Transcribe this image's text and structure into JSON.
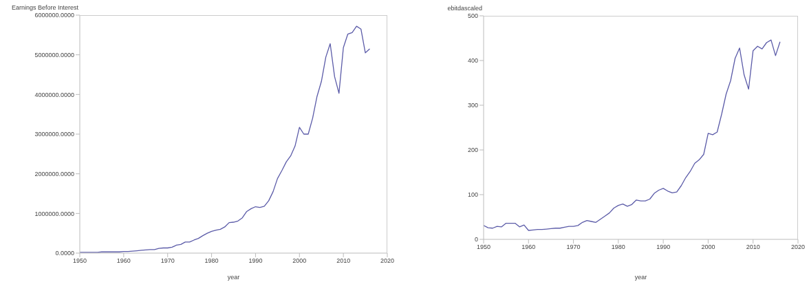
{
  "chart_data": [
    {
      "type": "line",
      "ylabel": "Earnings Before Interest",
      "xlabel": "year",
      "color": "#5b5ba8",
      "x": [
        1950,
        1951,
        1952,
        1953,
        1954,
        1955,
        1956,
        1957,
        1958,
        1959,
        1960,
        1961,
        1962,
        1963,
        1964,
        1965,
        1966,
        1967,
        1968,
        1969,
        1970,
        1971,
        1972,
        1973,
        1974,
        1975,
        1976,
        1977,
        1978,
        1979,
        1980,
        1981,
        1982,
        1983,
        1984,
        1985,
        1986,
        1987,
        1988,
        1989,
        1990,
        1991,
        1992,
        1993,
        1994,
        1995,
        1996,
        1997,
        1998,
        1999,
        2000,
        2001,
        2002,
        2003,
        2004,
        2005,
        2006,
        2007,
        2008,
        2009,
        2010,
        2011,
        2012,
        2013,
        2014,
        2015,
        2016
      ],
      "values": [
        20000,
        20000,
        20000,
        20000,
        20000,
        30000,
        30000,
        30000,
        30000,
        30000,
        40000,
        40000,
        50000,
        60000,
        70000,
        80000,
        90000,
        90000,
        120000,
        130000,
        130000,
        150000,
        200000,
        220000,
        280000,
        280000,
        330000,
        370000,
        440000,
        500000,
        550000,
        580000,
        600000,
        660000,
        770000,
        780000,
        810000,
        890000,
        1050000,
        1120000,
        1170000,
        1150000,
        1180000,
        1320000,
        1550000,
        1880000,
        2080000,
        2300000,
        2450000,
        2700000,
        3170000,
        3000000,
        3000000,
        3400000,
        3950000,
        4330000,
        4940000,
        5280000,
        4450000,
        4030000,
        5180000,
        5520000,
        5560000,
        5720000,
        5650000,
        5050000,
        5150000
      ],
      "xlim": [
        1950,
        2020
      ],
      "xticks": [
        1950,
        1960,
        1970,
        1980,
        1990,
        2000,
        2010,
        2020
      ],
      "ylim": [
        0,
        6000000
      ],
      "yticks": [
        {
          "value": 0,
          "label": "0.0000"
        },
        {
          "value": 1000000,
          "label": "1000000.0000"
        },
        {
          "value": 2000000,
          "label": "2000000.0000"
        },
        {
          "value": 3000000,
          "label": "3000000.0000"
        },
        {
          "value": 4000000,
          "label": "4000000.0000"
        },
        {
          "value": 5000000,
          "label": "5000000.0000"
        },
        {
          "value": 6000000,
          "label": "6000000.0000"
        }
      ]
    },
    {
      "type": "line",
      "ylabel": "ebitdascaled",
      "xlabel": "year",
      "color": "#5b5ba8",
      "x": [
        1950,
        1951,
        1952,
        1953,
        1954,
        1955,
        1956,
        1957,
        1958,
        1959,
        1960,
        1961,
        1962,
        1963,
        1964,
        1965,
        1966,
        1967,
        1968,
        1969,
        1970,
        1971,
        1972,
        1973,
        1974,
        1975,
        1976,
        1977,
        1978,
        1979,
        1980,
        1981,
        1982,
        1983,
        1984,
        1985,
        1986,
        1987,
        1988,
        1989,
        1990,
        1991,
        1992,
        1993,
        1994,
        1995,
        1996,
        1997,
        1998,
        1999,
        2000,
        2001,
        2002,
        2003,
        2004,
        2005,
        2006,
        2007,
        2008,
        2009,
        2010,
        2011,
        2012,
        2013,
        2014,
        2015,
        2016
      ],
      "values": [
        31,
        26,
        25,
        29,
        28,
        36,
        36,
        36,
        28,
        32,
        20,
        21,
        22,
        22,
        23,
        24,
        25,
        25,
        27,
        29,
        29,
        31,
        38,
        42,
        40,
        38,
        45,
        52,
        59,
        70,
        76,
        79,
        74,
        78,
        88,
        86,
        86,
        90,
        103,
        110,
        114,
        108,
        104,
        106,
        120,
        138,
        152,
        170,
        178,
        190,
        237,
        234,
        240,
        280,
        325,
        355,
        405,
        428,
        368,
        336,
        422,
        432,
        426,
        440,
        446,
        411,
        442
      ],
      "xlim": [
        1950,
        2020
      ],
      "xticks": [
        1950,
        1960,
        1970,
        1980,
        1990,
        2000,
        2010,
        2020
      ],
      "ylim": [
        0,
        500
      ],
      "yticks": [
        0,
        100,
        200,
        300,
        400,
        500
      ]
    }
  ]
}
